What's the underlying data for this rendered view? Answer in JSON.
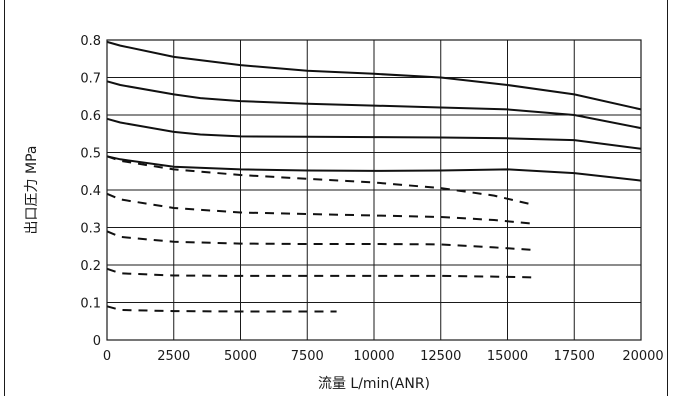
{
  "chart_data": {
    "type": "line",
    "xlabel": "流量 L/min(ANR)",
    "ylabel": "出口圧力 MPa",
    "xlim": [
      0,
      20000
    ],
    "ylim": [
      0,
      0.8
    ],
    "x_ticks": [
      0,
      2500,
      5000,
      7500,
      10000,
      12500,
      15000,
      17500,
      20000
    ],
    "y_ticks": [
      0,
      0.1,
      0.2,
      0.3,
      0.4,
      0.5,
      0.6,
      0.7,
      0.8
    ],
    "y_tick_labels": [
      "0",
      "0.1",
      "0.2",
      "0.3",
      "0.4",
      "0.5",
      "0.6",
      "0.7",
      "0.8"
    ],
    "grid": true,
    "series": [
      {
        "style": "solid",
        "points": [
          [
            0,
            0.795
          ],
          [
            500,
            0.785
          ],
          [
            2500,
            0.755
          ],
          [
            5000,
            0.733
          ],
          [
            7500,
            0.718
          ],
          [
            10000,
            0.71
          ],
          [
            12500,
            0.7
          ],
          [
            15000,
            0.68
          ],
          [
            17500,
            0.655
          ],
          [
            20000,
            0.615
          ]
        ]
      },
      {
        "style": "solid",
        "points": [
          [
            0,
            0.69
          ],
          [
            500,
            0.68
          ],
          [
            2500,
            0.655
          ],
          [
            3500,
            0.645
          ],
          [
            5000,
            0.637
          ],
          [
            7500,
            0.63
          ],
          [
            10000,
            0.625
          ],
          [
            12500,
            0.62
          ],
          [
            15000,
            0.615
          ],
          [
            17500,
            0.6
          ],
          [
            20000,
            0.565
          ]
        ]
      },
      {
        "style": "solid",
        "points": [
          [
            0,
            0.59
          ],
          [
            500,
            0.58
          ],
          [
            2500,
            0.555
          ],
          [
            3500,
            0.548
          ],
          [
            5000,
            0.543
          ],
          [
            7500,
            0.542
          ],
          [
            10000,
            0.541
          ],
          [
            12500,
            0.54
          ],
          [
            15000,
            0.538
          ],
          [
            17500,
            0.533
          ],
          [
            20000,
            0.51
          ]
        ]
      },
      {
        "style": "solid",
        "points": [
          [
            0,
            0.49
          ],
          [
            500,
            0.482
          ],
          [
            2500,
            0.462
          ],
          [
            5000,
            0.455
          ],
          [
            7500,
            0.452
          ],
          [
            10000,
            0.451
          ],
          [
            12500,
            0.452
          ],
          [
            15000,
            0.455
          ],
          [
            17500,
            0.445
          ],
          [
            20000,
            0.425
          ]
        ]
      },
      {
        "style": "dashed",
        "points": [
          [
            0,
            0.49
          ],
          [
            500,
            0.478
          ],
          [
            2500,
            0.455
          ],
          [
            5000,
            0.44
          ],
          [
            7500,
            0.43
          ],
          [
            10000,
            0.42
          ],
          [
            12500,
            0.405
          ],
          [
            14500,
            0.385
          ],
          [
            16000,
            0.36
          ]
        ]
      },
      {
        "style": "dashed",
        "points": [
          [
            0,
            0.39
          ],
          [
            500,
            0.375
          ],
          [
            2500,
            0.352
          ],
          [
            5000,
            0.34
          ],
          [
            7500,
            0.336
          ],
          [
            10000,
            0.332
          ],
          [
            12500,
            0.328
          ],
          [
            14500,
            0.32
          ],
          [
            16000,
            0.31
          ]
        ]
      },
      {
        "style": "dashed",
        "points": [
          [
            0,
            0.29
          ],
          [
            500,
            0.275
          ],
          [
            2500,
            0.262
          ],
          [
            5000,
            0.257
          ],
          [
            7500,
            0.256
          ],
          [
            10000,
            0.256
          ],
          [
            12500,
            0.255
          ],
          [
            14500,
            0.247
          ],
          [
            16000,
            0.24
          ]
        ]
      },
      {
        "style": "dashed",
        "points": [
          [
            0,
            0.19
          ],
          [
            500,
            0.178
          ],
          [
            2500,
            0.172
          ],
          [
            5000,
            0.171
          ],
          [
            7500,
            0.171
          ],
          [
            10000,
            0.171
          ],
          [
            12500,
            0.171
          ],
          [
            14500,
            0.169
          ],
          [
            16000,
            0.167
          ]
        ]
      },
      {
        "style": "dashed",
        "points": [
          [
            0,
            0.09
          ],
          [
            500,
            0.08
          ],
          [
            2500,
            0.077
          ],
          [
            5000,
            0.076
          ],
          [
            7500,
            0.076
          ],
          [
            8600,
            0.076
          ]
        ]
      }
    ]
  }
}
